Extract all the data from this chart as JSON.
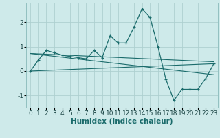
{
  "xlabel": "Humidex (Indice chaleur)",
  "ylabel": "",
  "bg_color": "#ceeaea",
  "grid_color": "#aed0d0",
  "line_color": "#1a6b6b",
  "xlim": [
    -0.5,
    23.5
  ],
  "ylim": [
    -1.5,
    2.8
  ],
  "yticks": [
    -1,
    0,
    1,
    2
  ],
  "xticks": [
    0,
    1,
    2,
    3,
    4,
    5,
    6,
    7,
    8,
    9,
    10,
    11,
    12,
    13,
    14,
    15,
    16,
    17,
    18,
    19,
    20,
    21,
    22,
    23
  ],
  "main_x": [
    0,
    1,
    2,
    3,
    4,
    5,
    6,
    7,
    8,
    9,
    10,
    11,
    12,
    13,
    14,
    15,
    16,
    17,
    18,
    19,
    20,
    21,
    22,
    23
  ],
  "main_y": [
    0.0,
    0.45,
    0.85,
    0.75,
    0.65,
    0.6,
    0.55,
    0.5,
    0.85,
    0.55,
    1.45,
    1.15,
    1.15,
    1.8,
    2.55,
    2.2,
    1.0,
    -0.35,
    -1.2,
    -0.75,
    -0.75,
    -0.75,
    -0.3,
    0.3
  ],
  "line1_x": [
    0,
    23
  ],
  "line1_y": [
    0.0,
    0.3
  ],
  "line2_x": [
    0,
    23
  ],
  "line2_y": [
    0.72,
    -0.15
  ],
  "line3_x": [
    0,
    23
  ],
  "line3_y": [
    0.72,
    0.38
  ],
  "tick_fontsize": 6.5,
  "xlabel_fontsize": 7.5
}
